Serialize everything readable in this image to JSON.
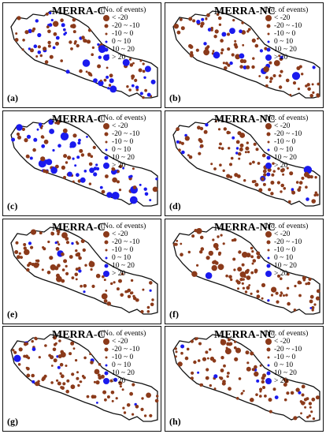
{
  "legend": {
    "header": "(No. of events)",
    "items": [
      {
        "label": "< -20",
        "color": "#8B3A1A",
        "size": "large"
      },
      {
        "label": "-20 ~ -10",
        "color": "#8B3A1A",
        "size": "medium"
      },
      {
        "label": "-10 ~ 0",
        "color": "#8B3A1A",
        "size": "small"
      },
      {
        "label": "0 ~ 10",
        "color": "#1A1AEE",
        "size": "small"
      },
      {
        "label": "10 ~ 20",
        "color": "#1A1AEE",
        "size": "medium"
      },
      {
        "label": "> 20",
        "color": "#1A1AEE",
        "size": "large"
      }
    ]
  },
  "panels": [
    {
      "title": "MERRA-C",
      "label": "(a)",
      "blue_share": 0.38
    },
    {
      "title": "MERRA-NC",
      "label": "(b)",
      "blue_share": 0.15
    },
    {
      "title": "MERRA-C",
      "label": "(c)",
      "blue_share": 0.55
    },
    {
      "title": "MERRA-NC",
      "label": "(d)",
      "blue_share": 0.12
    },
    {
      "title": "MERRA-C",
      "label": "(e)",
      "blue_share": 0.05
    },
    {
      "title": "MERRA-NC",
      "label": "(f)",
      "blue_share": 0.02
    },
    {
      "title": "MERRA-C",
      "label": "(g)",
      "blue_share": 0.14
    },
    {
      "title": "MERRA-NC",
      "label": "(h)",
      "blue_share": 0.04
    }
  ]
}
